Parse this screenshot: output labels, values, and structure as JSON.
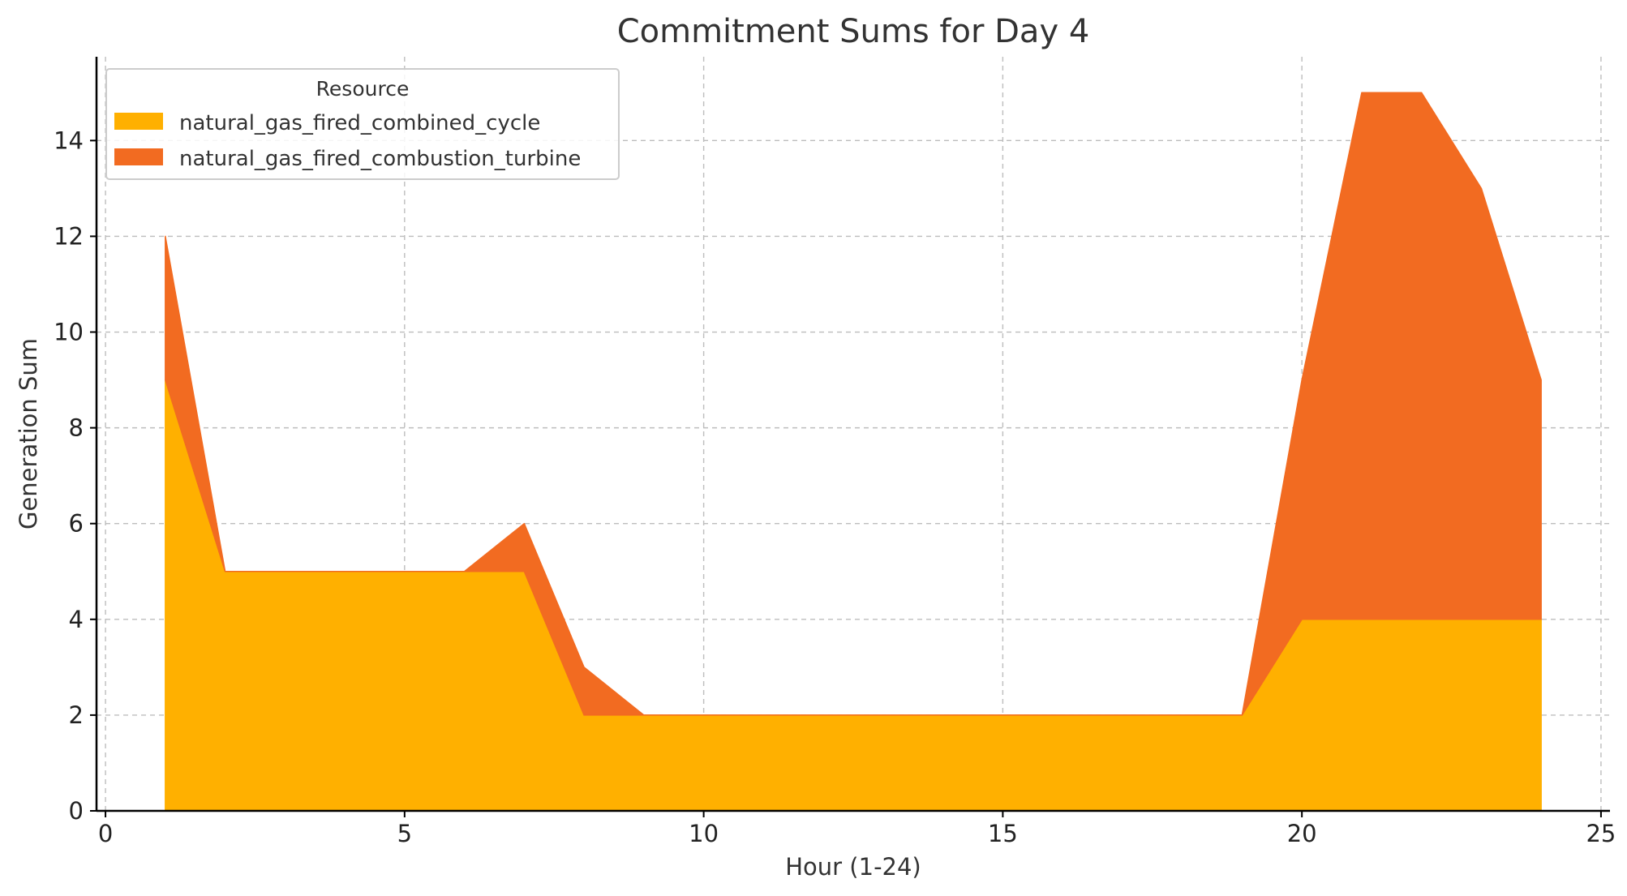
{
  "chart_data": {
    "type": "area",
    "stacked": true,
    "title": "Commitment Sums for Day 4",
    "xlabel": "Hour (1-24)",
    "ylabel": "Generation Sum",
    "xlim": [
      -0.15,
      25.15
    ],
    "ylim": [
      0,
      15.75
    ],
    "xticks": [
      0,
      5,
      10,
      15,
      20,
      25
    ],
    "yticks": [
      0,
      2,
      4,
      6,
      8,
      10,
      12,
      14
    ],
    "grid": true,
    "legend_title": "Resource",
    "legend_position": "top-left",
    "x": [
      1,
      2,
      3,
      4,
      5,
      6,
      7,
      8,
      9,
      10,
      11,
      12,
      13,
      14,
      15,
      16,
      17,
      18,
      19,
      20,
      21,
      22,
      23,
      24
    ],
    "series": [
      {
        "name": "natural_gas_fired_combined_cycle",
        "color": "#FFB000",
        "values": [
          9,
          5,
          5,
          5,
          5,
          5,
          5,
          2,
          2,
          2,
          2,
          2,
          2,
          2,
          2,
          2,
          2,
          2,
          2,
          4,
          4,
          4,
          4,
          4
        ]
      },
      {
        "name": "natural_gas_fired_combustion_turbine",
        "color": "#F26B21",
        "values": [
          3,
          0,
          0,
          0,
          0,
          0,
          1,
          1,
          0,
          0,
          0,
          0,
          0,
          0,
          0,
          0,
          0,
          0,
          0,
          5,
          11,
          11,
          9,
          5
        ]
      }
    ]
  }
}
